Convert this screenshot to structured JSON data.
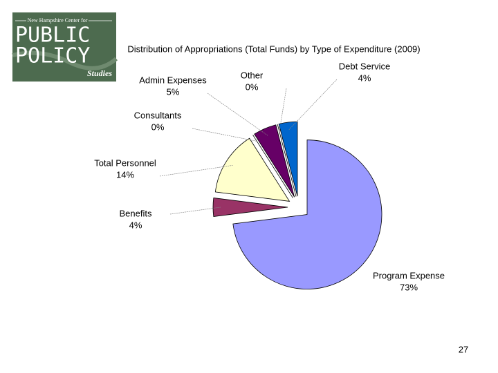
{
  "logo": {
    "tagline": "New Hampshire Center for",
    "line1": "PUBLIC",
    "line2": "POLICY",
    "line3": "Studies"
  },
  "chart_data": {
    "type": "pie",
    "title": "Distribution of Appropriations (Total Funds) by Type of Expenditure (2009)",
    "categories": [
      "Program Expense",
      "Benefits",
      "Total Personnel",
      "Consultants",
      "Admin Expenses",
      "Other",
      "Debt Service"
    ],
    "values": [
      73,
      4,
      14,
      0,
      5,
      0,
      4
    ],
    "value_labels": [
      "73%",
      "4%",
      "14%",
      "0%",
      "5%",
      "0%",
      "4%"
    ],
    "colors": [
      "#9999ff",
      "#993366",
      "#ffffcc",
      "#ccffff",
      "#660066",
      "#ff8080",
      "#0066cc"
    ]
  },
  "page_number": 27
}
